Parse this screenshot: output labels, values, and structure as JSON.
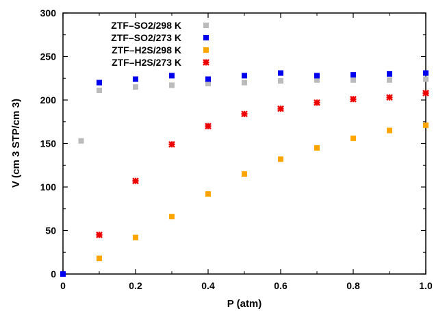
{
  "chart_data": {
    "type": "scatter",
    "xlabel": "P (atm)",
    "ylabel": "V (cm 3 STP/cm 3)",
    "xlim": [
      0,
      1.0
    ],
    "ylim": [
      0,
      300
    ],
    "x_ticks": [
      "0",
      "0.2",
      "0.4",
      "0.6",
      "0.8",
      "1.0"
    ],
    "y_ticks": [
      "0",
      "50",
      "100",
      "150",
      "200",
      "250",
      "300"
    ],
    "legend_position": "top-left",
    "series": [
      {
        "name": "ZTF–SO2/298 K",
        "marker": "square",
        "color": "#bbbbbb",
        "x": [
          0,
          0.05,
          0.1,
          0.2,
          0.3,
          0.4,
          0.5,
          0.6,
          0.7,
          0.8,
          0.9,
          1.0
        ],
        "y": [
          0,
          153,
          211,
          215,
          217,
          219,
          220,
          222,
          223,
          223,
          223,
          224
        ]
      },
      {
        "name": "ZTF–SO2/273 K",
        "marker": "square",
        "color": "#0000ee",
        "x": [
          0,
          0.1,
          0.2,
          0.3,
          0.4,
          0.5,
          0.6,
          0.7,
          0.8,
          0.9,
          1.0
        ],
        "y": [
          0,
          220,
          224,
          228,
          224,
          228,
          231,
          228,
          229,
          230,
          231
        ]
      },
      {
        "name": "ZTF–H2S/298 K",
        "marker": "square",
        "color": "#ffa500",
        "x": [
          0.1,
          0.2,
          0.3,
          0.4,
          0.5,
          0.6,
          0.7,
          0.8,
          0.9,
          1.0
        ],
        "y": [
          18,
          42,
          66,
          92,
          115,
          132,
          145,
          156,
          165,
          171
        ]
      },
      {
        "name": "ZTF–H2S/273 K",
        "marker": "star",
        "color": "#ee0000",
        "x": [
          0.1,
          0.2,
          0.3,
          0.4,
          0.5,
          0.6,
          0.7,
          0.8,
          0.9,
          1.0
        ],
        "y": [
          45,
          107,
          149,
          170,
          184,
          190,
          197,
          201,
          203,
          208
        ]
      }
    ]
  }
}
